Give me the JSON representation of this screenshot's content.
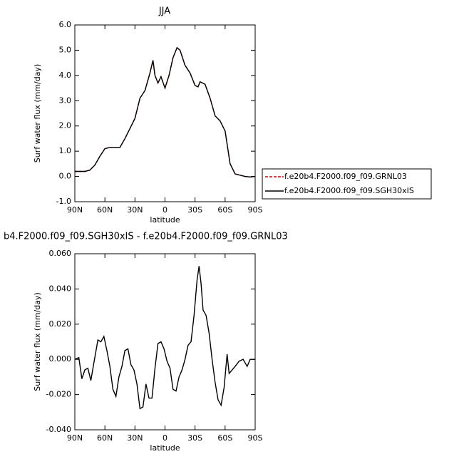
{
  "chart_data": [
    {
      "type": "line",
      "title": "JJA",
      "xlabel": "latitude",
      "ylabel": "Surf water flux (mm/day)",
      "x": [
        90,
        80,
        75,
        70,
        65,
        60,
        55,
        50,
        45,
        40,
        35,
        30,
        25,
        20,
        15,
        12,
        10,
        7,
        4,
        0,
        -4,
        -8,
        -12,
        -15,
        -20,
        -25,
        -30,
        -33,
        -35,
        -40,
        -45,
        -50,
        -55,
        -60,
        -65,
        -70,
        -75,
        -80,
        -85,
        -90
      ],
      "series": [
        {
          "name": "f.e20b4.F2000.f09_f09.GRNL03",
          "color": "#cc0000",
          "dash": true,
          "values": [
            0.2,
            0.2,
            0.25,
            0.45,
            0.8,
            1.1,
            1.15,
            1.15,
            1.15,
            1.5,
            1.9,
            2.3,
            3.1,
            3.4,
            4.1,
            4.6,
            4.0,
            3.7,
            3.95,
            3.5,
            4.0,
            4.7,
            5.1,
            5.0,
            4.4,
            4.1,
            3.6,
            3.55,
            3.75,
            3.65,
            3.1,
            2.4,
            2.2,
            1.8,
            0.5,
            0.1,
            0.05,
            0.0,
            -0.02,
            0.0
          ]
        },
        {
          "name": "f.e20b4.F2000.f09_f09.SGH30xIS",
          "color": "#000000",
          "dash": false,
          "values": [
            0.2,
            0.2,
            0.25,
            0.45,
            0.8,
            1.1,
            1.15,
            1.15,
            1.15,
            1.5,
            1.9,
            2.3,
            3.1,
            3.4,
            4.1,
            4.6,
            4.0,
            3.7,
            3.95,
            3.5,
            4.0,
            4.7,
            5.1,
            5.0,
            4.4,
            4.1,
            3.6,
            3.55,
            3.75,
            3.65,
            3.1,
            2.4,
            2.2,
            1.8,
            0.5,
            0.1,
            0.05,
            0.0,
            -0.02,
            0.0
          ]
        }
      ],
      "xlim": [
        90,
        -90
      ],
      "xticks": [
        {
          "value": 90,
          "label": "90N"
        },
        {
          "value": 60,
          "label": "60N"
        },
        {
          "value": 30,
          "label": "30N"
        },
        0,
        {
          "value": -30,
          "label": "30S"
        },
        {
          "value": -60,
          "label": "60S"
        },
        {
          "value": -90,
          "label": "90S"
        }
      ],
      "ylim": [
        -1,
        6
      ],
      "yticks": [
        {
          "value": -1,
          "label": "-1.0"
        },
        {
          "value": 0,
          "label": "0.0"
        },
        {
          "value": 1,
          "label": "1.0"
        },
        {
          "value": 2,
          "label": "2.0"
        },
        {
          "value": 3,
          "label": "3.0"
        },
        {
          "value": 4,
          "label": "4.0"
        },
        {
          "value": 5,
          "label": "5.0"
        },
        {
          "value": 6,
          "label": "6.0"
        }
      ],
      "legend": "right"
    },
    {
      "type": "line",
      "title": "b4.F2000.f09_f09.SGH30xIS - f.e20b4.F2000.f09_f09.GRNL03",
      "xlabel": "latitude",
      "ylabel": "Surf water flux (mm/day)",
      "x": [
        90,
        86,
        83,
        80,
        77,
        74,
        71,
        67,
        64,
        61,
        58,
        55,
        52,
        49,
        46,
        43,
        40,
        37,
        34,
        31,
        28,
        25,
        22,
        19,
        16,
        13,
        10,
        7,
        4,
        1,
        -2,
        -5,
        -8,
        -11,
        -14,
        -17,
        -20,
        -23,
        -26,
        -29,
        -32,
        -34,
        -36,
        -38,
        -41,
        -44,
        -47,
        -50,
        -53,
        -56,
        -59,
        -62,
        -64,
        -67,
        -70,
        -74,
        -78,
        -82,
        -85,
        -90
      ],
      "series": [
        {
          "color": "#000000",
          "values": [
            0.0,
            0.001,
            -0.011,
            -0.006,
            -0.005,
            -0.012,
            -0.002,
            0.011,
            0.01,
            0.013,
            0.005,
            -0.004,
            -0.017,
            -0.021,
            -0.01,
            -0.004,
            0.005,
            0.006,
            -0.003,
            -0.006,
            -0.014,
            -0.028,
            -0.027,
            -0.014,
            -0.022,
            -0.022,
            -0.005,
            0.009,
            0.01,
            0.006,
            -0.001,
            -0.005,
            -0.017,
            -0.018,
            -0.01,
            -0.006,
            0.0,
            0.008,
            0.01,
            0.025,
            0.045,
            0.053,
            0.043,
            0.028,
            0.025,
            0.015,
            0.0,
            -0.013,
            -0.023,
            -0.026,
            -0.016,
            0.003,
            -0.008,
            -0.006,
            -0.004,
            -0.001,
            0.0,
            -0.004,
            0.0,
            0.0
          ]
        }
      ],
      "xlim": [
        90,
        -90
      ],
      "xticks": [
        {
          "value": 90,
          "label": "90N"
        },
        {
          "value": 60,
          "label": "60N"
        },
        {
          "value": 30,
          "label": "30N"
        },
        0,
        {
          "value": -30,
          "label": "30S"
        },
        {
          "value": -60,
          "label": "60S"
        },
        {
          "value": -90,
          "label": "90S"
        }
      ],
      "ylim": [
        -0.04,
        0.06
      ],
      "yticks": [
        {
          "value": -0.04,
          "label": "-0.040"
        },
        {
          "value": -0.02,
          "label": "-0.020"
        },
        {
          "value": 0,
          "label": "0.000"
        },
        {
          "value": 0.02,
          "label": "0.020"
        },
        {
          "value": 0.04,
          "label": "0.040"
        },
        {
          "value": 0.06,
          "label": "0.060"
        }
      ]
    }
  ]
}
